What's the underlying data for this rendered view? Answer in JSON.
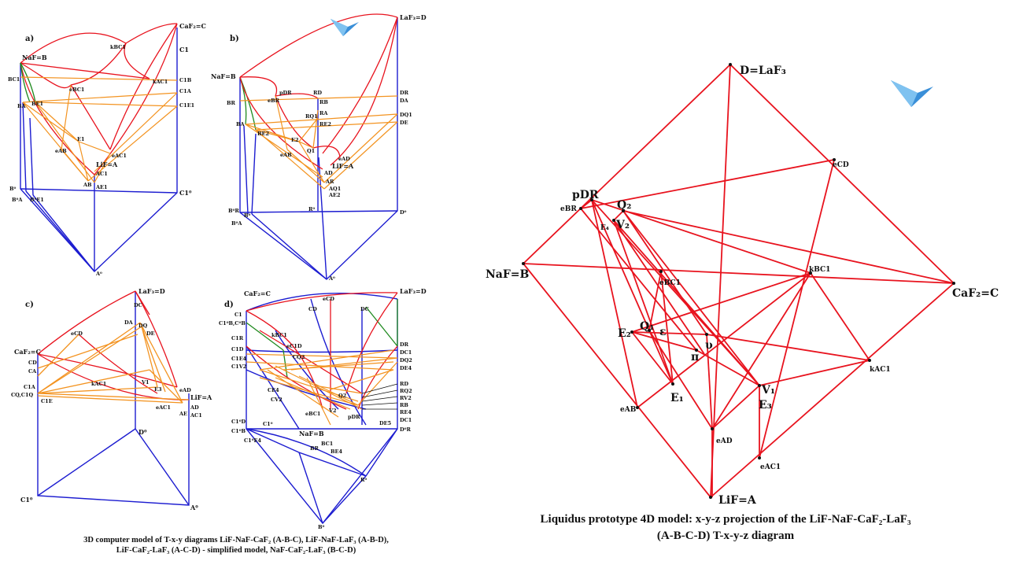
{
  "captions": {
    "left_line1": "3D computer model of T-x-y diagrams LiF-NaF-CaF₂ (A-B-C), LiF-NaF-LaF₃ (A-B-D),",
    "left_line2": "LiF-CaF₂-LaF₃ (A-C-D) - simplified model, NaF-CaF₂-LaF₃ (B-C-D)",
    "right_line1": "Liquidus prototype 4D model: x-y-z projection of the LiF-NaF-CaF₂-LaF₃",
    "right_line2": "(A-B-C-D) T-x-y-z diagram"
  },
  "panels": {
    "a": "a)",
    "b": "b)",
    "c": "c)",
    "d": "d)"
  },
  "colors": {
    "red": "#e8131e",
    "orange": "#f39320",
    "blue": "#1c1cd0",
    "green": "#1f8a1f",
    "black": "#111111"
  },
  "icons": [
    "logo-icon"
  ],
  "right_labels": {
    "D": "D=LaF₃",
    "NaF": "NaF=B",
    "CaF2": "CaF₂=C",
    "LiF": "LiF=A",
    "eCD": "eCD",
    "pDR": "pDR",
    "eBR": "eBR",
    "Q2": "Q₂",
    "E4": "E₄",
    "V2": "V₂",
    "kBC1": "kBC1",
    "eBC1": "eBC1",
    "E2": "E₂",
    "Q1": "Q₁",
    "eps": "ε",
    "ups": "υ",
    "pi": "π",
    "kAC1": "kAC1",
    "V1": "V₁",
    "E3": "E₃",
    "E1": "E₁",
    "eAB": "eAB",
    "eAD": "eAD",
    "eAC1": "eAC1"
  },
  "panel_a_labels": {
    "CaF2C": "CaF₂=C",
    "kBC1": "kBC1",
    "C1": "C1",
    "NaFB": "NaF=B",
    "C1B": "C1B",
    "C1A": "C1A",
    "C1E1": "C1E1",
    "BC1": "BC1",
    "eBC1": "eBC1",
    "kAC1": "kAC1",
    "BA": "BA",
    "BE1": "BE1",
    "E1": "E1",
    "eAB": "eAB",
    "eAC1": "eAC1",
    "LiFA": "LiF=A",
    "AC1": "AC1",
    "AB": "AB",
    "AE1": "AE1",
    "B0": "B⁰",
    "B0A": "B⁰A",
    "B0E1": "B⁰E1",
    "C10": "C1⁰",
    "A0": "A⁰"
  },
  "panel_b_labels": {
    "LaF3D": "LaF₃=D",
    "NaFB": "NaF=B",
    "pDR": "pDR",
    "RD": "RD",
    "DR": "DR",
    "eBR": "eBR",
    "RB": "RB",
    "DA": "DA",
    "BR": "BR",
    "RA": "RA",
    "RQ1": "RQ1",
    "DQ1": "DQ1",
    "BA": "BA",
    "RE2": "RE2",
    "DE": "DE",
    "BE2": "BE2",
    "E2": "E2",
    "Q1": "Q1",
    "eAB": "eAB",
    "eAD": "eAD",
    "LiFA": "LiF=A",
    "AD": "AD",
    "AR": "AR",
    "AQ1": "AQ1",
    "AE2": "AE2",
    "B0R": "B⁰R",
    "B0": "B⁰",
    "B0A": "B⁰A",
    "R0": "R⁰",
    "D0": "D⁰",
    "A0": "A⁰"
  },
  "panel_c_labels": {
    "LaF3D": "LaF₃=D",
    "DC": "DC",
    "DA": "DA",
    "DQ": "DQ",
    "DE": "DE",
    "eCD": "eCD",
    "CaF2C": "CaF₂=C",
    "CD": "CD",
    "CA": "CA",
    "kAC1": "kAC1",
    "V1": "V1",
    "E3": "E3",
    "eAD": "eAD",
    "LiFA": "LiF=A",
    "C1A": "C1A",
    "CQ": "CQ,C1Q",
    "C1E": "C1E",
    "eAC1": "eAC1",
    "AE": "AE",
    "AD": "AD",
    "AC1": "AC1",
    "D0": "D⁰",
    "C10": "C1⁰",
    "A0": "A⁰"
  },
  "panel_d_labels": {
    "CaF2C": "CaF₂=C",
    "eCD": "eCD",
    "LaF3D": "LaF₃=D",
    "C1": "C1",
    "CD": "CD",
    "DC": "DC",
    "C1BC": "C1⁰B,C⁰B",
    "kBC1": "kBC1",
    "C1R": "C1R",
    "eC1D": "eC1D",
    "DR": "DR",
    "C1D": "C1D",
    "DC1": "DC1",
    "C1E4": "C1E4",
    "CQ2": "CQ2",
    "DQ2": "DQ2",
    "C1V2": "C1V2",
    "DE4": "DE4",
    "CE4": "CE4",
    "CV2": "CV2",
    "Q2": "Q2",
    "RD": "RD",
    "RQ2": "RQ2",
    "RV2": "RV2",
    "RB": "RB",
    "RE4": "RE4",
    "eBC1": "eBC1",
    "V2": "V2",
    "pDR": "pDR",
    "DE5": "DE5",
    "C10": "C1⁰",
    "C10D": "C1⁰D",
    "C10B": "C1⁰B",
    "C10E4": "C1⁰E4",
    "NaFB": "NaF=B",
    "BC1": "BC1",
    "BE4": "BE4",
    "BR": "BR",
    "R0": "R⁰",
    "B0": "B⁰",
    "DC1b": "DC1",
    "DR0": "D⁰R"
  }
}
